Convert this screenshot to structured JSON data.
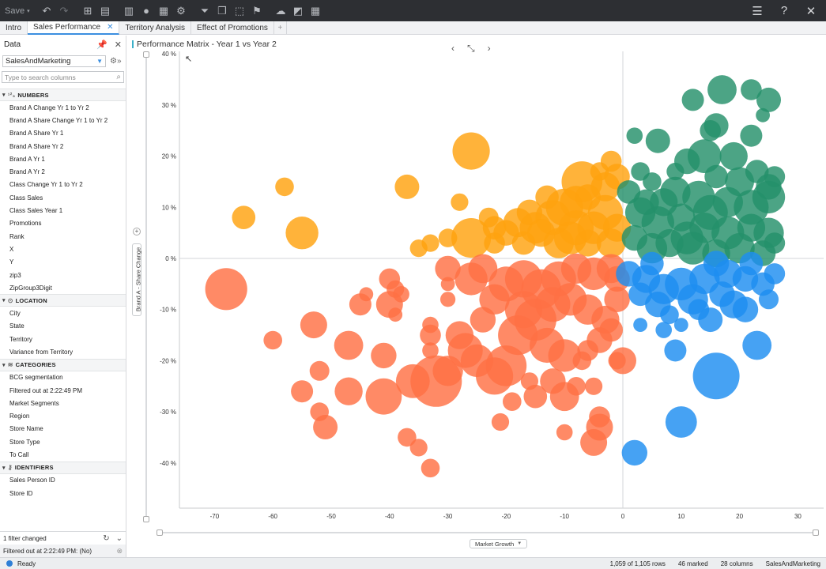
{
  "toolbar": {
    "save_label": "Save"
  },
  "tabs": [
    {
      "label": "Intro",
      "active": false
    },
    {
      "label": "Sales Performance",
      "active": true
    },
    {
      "label": "Territory Analysis",
      "active": false
    },
    {
      "label": "Effect of Promotions",
      "active": false
    }
  ],
  "sidebar": {
    "title": "Data",
    "source": "SalesAndMarketing",
    "search_placeholder": "Type to search columns",
    "groups": [
      {
        "label": "NUMBERS",
        "icon": "numbers-icon",
        "items": [
          "Brand A Change Yr 1 to Yr 2",
          "Brand A Share Change Yr 1 to Yr 2",
          "Brand A Share Yr 1",
          "Brand A Share Yr 2",
          "Brand A Yr 1",
          "Brand A Yr 2",
          "Class Change Yr 1 to Yr 2",
          "Class Sales",
          "Class Sales Year 1",
          "Promotions",
          "Rank",
          "X",
          "Y",
          "zip3",
          "ZipGroup3Digit"
        ]
      },
      {
        "label": "LOCATION",
        "icon": "location-pin-icon",
        "items": [
          "City",
          "State",
          "Territory",
          "Variance from Territory"
        ]
      },
      {
        "label": "CATEGORIES",
        "icon": "layers-icon",
        "items": [
          "BCG segmentation",
          "Filtered out at 2:22:49 PM",
          "Market Segments",
          "Region",
          "Store Name",
          "Store Type",
          "To Call"
        ]
      },
      {
        "label": "IDENTIFIERS",
        "icon": "key-icon",
        "items": [
          "Sales Person ID",
          "Store ID"
        ]
      }
    ],
    "filter_status": "1 filter changed",
    "filter_detail": "Filtered out at 2:22:49 PM:  (No)"
  },
  "viz": {
    "title": "Performance Matrix - Year 1 vs Year 2",
    "ylabel": "Brand A - Share Change",
    "xlabel": "Market Growth"
  },
  "status": {
    "state": "Ready",
    "rows": "1,059 of 1,105 rows",
    "marked": "46 marked",
    "columns": "28 columns",
    "source": "SalesAndMarketing"
  },
  "chart_data": {
    "type": "scatter",
    "title": "Performance Matrix - Year 1 vs Year 2",
    "xlabel": "Market Growth",
    "ylabel": "Brand A - Share Change",
    "xlim": [
      -77,
      34
    ],
    "ylim": [
      -48,
      40
    ],
    "xticks": [
      -70,
      -60,
      -50,
      -40,
      -30,
      -20,
      -10,
      0,
      10,
      20,
      30
    ],
    "yticks": [
      40,
      30,
      20,
      10,
      0,
      -10,
      -20,
      -30,
      -40
    ],
    "ytick_labels": [
      "40 %",
      "30 %",
      "20 %",
      "10 %",
      "0 %",
      "-10 %",
      "-20 %",
      "-30 %",
      "-40 %"
    ],
    "colors": {
      "orange": "#ffa20f",
      "coral": "#ff7044",
      "green": "#24906a",
      "blue": "#1d8ef0"
    },
    "series": [
      {
        "color": "orange",
        "points": [
          [
            -26,
            21,
            3.2
          ],
          [
            -37,
            14,
            2.1
          ],
          [
            -58,
            14,
            1.6
          ],
          [
            -65,
            8,
            2
          ],
          [
            -55,
            5,
            2.8
          ],
          [
            -28,
            11,
            1.5
          ],
          [
            -26,
            4,
            3.4
          ],
          [
            -33,
            3,
            1.5
          ],
          [
            -30,
            4,
            1.6
          ],
          [
            -22,
            6,
            2
          ],
          [
            -20,
            5,
            2.2
          ],
          [
            -18,
            7,
            2.5
          ],
          [
            -15,
            6,
            2.7
          ],
          [
            -12,
            8,
            3
          ],
          [
            -10,
            10,
            3.2
          ],
          [
            -8,
            11,
            2.8
          ],
          [
            -6,
            12,
            2.2
          ],
          [
            -3,
            14,
            2.5
          ],
          [
            -1,
            16,
            2.2
          ],
          [
            -2,
            19,
            1.8
          ],
          [
            -4,
            17,
            1.6
          ],
          [
            -7,
            15,
            3.5
          ],
          [
            -13,
            12,
            2
          ],
          [
            -17,
            3,
            2
          ],
          [
            -22,
            3,
            1.8
          ],
          [
            -8,
            6,
            3
          ],
          [
            -5,
            6,
            2.8
          ],
          [
            -3,
            9,
            3
          ],
          [
            -1,
            6,
            2.4
          ],
          [
            -11,
            3,
            2.6
          ],
          [
            -14,
            5,
            2.4
          ],
          [
            -6,
            3,
            2.3
          ],
          [
            -2,
            3,
            2.5
          ],
          [
            -16,
            9,
            2.2
          ],
          [
            -9,
            4,
            2.8
          ],
          [
            -35,
            2,
            1.5
          ],
          [
            -23,
            8,
            1.7
          ]
        ]
      },
      {
        "color": "coral",
        "points": [
          [
            -68,
            -6,
            3.6
          ],
          [
            -53,
            -13,
            2.3
          ],
          [
            -60,
            -16,
            1.6
          ],
          [
            -52,
            -22,
            1.7
          ],
          [
            -55,
            -26,
            1.9
          ],
          [
            -52,
            -30,
            1.6
          ],
          [
            -51,
            -33,
            2.1
          ],
          [
            -47,
            -17,
            2.5
          ],
          [
            -45,
            -9,
            1.9
          ],
          [
            -44,
            -7,
            1.2
          ],
          [
            -40,
            -9,
            2.3
          ],
          [
            -39,
            -6,
            1.5
          ],
          [
            -38,
            -7,
            1.4
          ],
          [
            -40,
            -4,
            1.8
          ],
          [
            -39,
            -11,
            1.2
          ],
          [
            -41,
            -19,
            2.2
          ],
          [
            -47,
            -26,
            2.4
          ],
          [
            -41,
            -27,
            3.1
          ],
          [
            -36,
            -24,
            2.9
          ],
          [
            -32,
            -24,
            4.4
          ],
          [
            -30,
            -22,
            2.6
          ],
          [
            -27,
            -18,
            3
          ],
          [
            -25,
            -20,
            2.8
          ],
          [
            -22,
            -23,
            3.2
          ],
          [
            -20,
            -21,
            3.5
          ],
          [
            -18,
            -15,
            3.4
          ],
          [
            -17,
            -10,
            3.2
          ],
          [
            -15,
            -12,
            3.6
          ],
          [
            -13,
            -17,
            3
          ],
          [
            -10,
            -19,
            2.8
          ],
          [
            -12,
            -24,
            2.2
          ],
          [
            -10,
            -27,
            2.5
          ],
          [
            -15,
            -27,
            2
          ],
          [
            -8,
            -25,
            1.6
          ],
          [
            -5,
            -25,
            1.5
          ],
          [
            -4,
            -31,
            1.8
          ],
          [
            -4,
            -33,
            2.3
          ],
          [
            -5,
            -36,
            2.3
          ],
          [
            -10,
            -34,
            1.4
          ],
          [
            -21,
            -32,
            1.5
          ],
          [
            -35,
            -37,
            1.5
          ],
          [
            -37,
            -35,
            1.6
          ],
          [
            -33,
            -41,
            1.6
          ],
          [
            -30,
            -8,
            1.3
          ],
          [
            -33,
            -13,
            1.4
          ],
          [
            -30,
            -5,
            1.2
          ],
          [
            -30,
            -2,
            2.2
          ],
          [
            -26,
            -4,
            2.8
          ],
          [
            -22,
            -8,
            2.6
          ],
          [
            -24,
            -12,
            2.2
          ],
          [
            -28,
            -15,
            2.4
          ],
          [
            -33,
            -15,
            1.8
          ],
          [
            -20,
            -5,
            3
          ],
          [
            -17,
            -4,
            3.2
          ],
          [
            -14,
            -6,
            3.4
          ],
          [
            -11,
            -4,
            3
          ],
          [
            -9,
            -8,
            2.8
          ],
          [
            -6,
            -10,
            2.6
          ],
          [
            -3,
            -12,
            2.4
          ],
          [
            -1,
            -8,
            2.2
          ],
          [
            -2,
            -14,
            2
          ],
          [
            -4,
            -16,
            2.2
          ],
          [
            -6,
            -18,
            1.8
          ],
          [
            -1,
            -20,
            1.5
          ],
          [
            0,
            -20,
            2.3
          ],
          [
            -8,
            -2,
            2.6
          ],
          [
            -5,
            -3,
            2.8
          ],
          [
            -2,
            -2,
            2.5
          ],
          [
            -1,
            -4,
            2.2
          ],
          [
            -33,
            -18,
            1.4
          ],
          [
            -19,
            -28,
            1.6
          ],
          [
            -16,
            -24,
            1.5
          ],
          [
            -7,
            -20,
            1.6
          ],
          [
            -12,
            -9,
            3
          ],
          [
            -24,
            -2,
            2.5
          ]
        ]
      },
      {
        "color": "green",
        "points": [
          [
            17,
            33,
            2.5
          ],
          [
            22,
            33,
            1.8
          ],
          [
            25,
            31,
            2.1
          ],
          [
            12,
            31,
            1.9
          ],
          [
            24,
            28,
            1.2
          ],
          [
            15,
            25,
            1.8
          ],
          [
            16,
            26,
            2.1
          ],
          [
            22,
            24,
            1.9
          ],
          [
            6,
            23,
            2.1
          ],
          [
            2,
            24,
            1.4
          ],
          [
            14,
            20,
            2.9
          ],
          [
            11,
            19,
            2.2
          ],
          [
            19,
            20,
            2.4
          ],
          [
            23,
            17,
            2
          ],
          [
            3,
            17,
            1.6
          ],
          [
            9,
            17,
            1.5
          ],
          [
            26,
            16,
            1.8
          ],
          [
            5,
            15,
            1.6
          ],
          [
            16,
            16,
            2
          ],
          [
            20,
            15,
            2.5
          ],
          [
            25,
            14,
            2.2
          ],
          [
            1,
            13,
            2
          ],
          [
            7,
            11,
            2.4
          ],
          [
            9,
            13,
            2.6
          ],
          [
            13,
            12,
            2.8
          ],
          [
            18,
            11,
            2.6
          ],
          [
            22,
            10,
            3
          ],
          [
            25,
            12,
            2.8
          ],
          [
            3,
            9,
            2.6
          ],
          [
            6,
            7,
            2.8
          ],
          [
            10,
            8,
            2.4
          ],
          [
            14,
            6,
            2.6
          ],
          [
            18,
            5,
            2.8
          ],
          [
            22,
            6,
            2.4
          ],
          [
            25,
            5,
            2.6
          ],
          [
            2,
            4,
            2.2
          ],
          [
            5,
            2,
            2.6
          ],
          [
            8,
            3,
            2.4
          ],
          [
            12,
            2,
            2.8
          ],
          [
            16,
            1,
            2.4
          ],
          [
            20,
            2,
            2.6
          ],
          [
            24,
            1,
            2.2
          ],
          [
            26,
            3,
            1.8
          ],
          [
            4,
            11,
            2.2
          ],
          [
            11,
            4,
            2.8
          ],
          [
            15,
            9,
            3
          ]
        ]
      },
      {
        "color": "blue",
        "points": [
          [
            23,
            -17,
            2.5
          ],
          [
            16,
            -23,
            4
          ],
          [
            9,
            -18,
            1.9
          ],
          [
            10,
            -13,
            1.2
          ],
          [
            15,
            -12,
            2.1
          ],
          [
            7,
            -14,
            1.4
          ],
          [
            3,
            -13,
            1.2
          ],
          [
            21,
            -10,
            2.2
          ],
          [
            25,
            -8,
            1.7
          ],
          [
            26,
            -3,
            1.8
          ],
          [
            10,
            -32,
            2.7
          ],
          [
            2,
            -38,
            2.2
          ],
          [
            1,
            -3,
            2.2
          ],
          [
            4,
            -4,
            2.4
          ],
          [
            7,
            -6,
            2.6
          ],
          [
            10,
            -5,
            2.8
          ],
          [
            14,
            -4,
            2.6
          ],
          [
            18,
            -3,
            2.4
          ],
          [
            21,
            -4,
            2.2
          ],
          [
            24,
            -5,
            2
          ],
          [
            3,
            -7,
            2
          ],
          [
            6,
            -9,
            2.2
          ],
          [
            12,
            -8,
            2.6
          ],
          [
            17,
            -7,
            2.2
          ],
          [
            19,
            -9,
            2.4
          ],
          [
            8,
            -11,
            1.6
          ],
          [
            13,
            -10,
            1.8
          ],
          [
            5,
            -1,
            2
          ],
          [
            16,
            -1,
            2.2
          ],
          [
            22,
            -1,
            2
          ]
        ]
      }
    ]
  }
}
